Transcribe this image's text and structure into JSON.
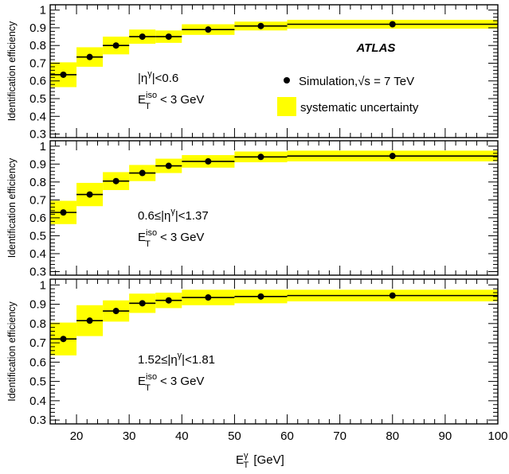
{
  "chart_data": [
    {
      "type": "scatter",
      "ylabel": "Identification efficiency",
      "ylim": [
        0.28,
        1.03
      ],
      "xlim": [
        15,
        100
      ],
      "yticks": [
        0.3,
        0.4,
        0.5,
        0.6,
        0.7,
        0.8,
        0.9,
        1
      ],
      "ytick_labels": [
        "0.3",
        "0.4",
        "0.5",
        "0.6",
        "0.7",
        "0.8",
        "0.9",
        "1"
      ],
      "annotation": {
        "eta_range": "|ηγ|<0.6",
        "et_iso": "E_T^iso < 3 GeV"
      },
      "atlas_label": "ATLAS",
      "legend": {
        "position": "right",
        "marker_label": "Simulation,√s = 7 TeV",
        "band_label": "systematic uncertainty"
      },
      "series": [
        {
          "points": [
            {
              "x_low": 15,
              "x_high": 20,
              "y": 0.635,
              "syst": 0.07
            },
            {
              "x_low": 20,
              "x_high": 25,
              "y": 0.735,
              "syst": 0.055
            },
            {
              "x_low": 25,
              "x_high": 30,
              "y": 0.8,
              "syst": 0.05
            },
            {
              "x_low": 30,
              "x_high": 35,
              "y": 0.85,
              "syst": 0.04
            },
            {
              "x_low": 35,
              "x_high": 40,
              "y": 0.85,
              "syst": 0.035
            },
            {
              "x_low": 40,
              "x_high": 50,
              "y": 0.89,
              "syst": 0.03
            },
            {
              "x_low": 50,
              "x_high": 60,
              "y": 0.91,
              "syst": 0.025
            },
            {
              "x_low": 60,
              "x_high": 100,
              "y": 0.92,
              "syst": 0.025
            }
          ]
        }
      ]
    },
    {
      "type": "scatter",
      "ylabel": "Identification efficiency",
      "ylim": [
        0.28,
        1.03
      ],
      "xlim": [
        15,
        100
      ],
      "yticks": [
        0.3,
        0.4,
        0.5,
        0.6,
        0.7,
        0.8,
        0.9,
        1
      ],
      "ytick_labels": [
        "0.3",
        "0.4",
        "0.5",
        "0.6",
        "0.7",
        "0.8",
        "0.9",
        "1"
      ],
      "annotation": {
        "eta_range": "0.6≤|ηγ|<1.37",
        "et_iso": "E_T^iso < 3 GeV"
      },
      "series": [
        {
          "points": [
            {
              "x_low": 15,
              "x_high": 20,
              "y": 0.63,
              "syst": 0.065
            },
            {
              "x_low": 20,
              "x_high": 25,
              "y": 0.73,
              "syst": 0.065
            },
            {
              "x_low": 25,
              "x_high": 30,
              "y": 0.805,
              "syst": 0.05
            },
            {
              "x_low": 30,
              "x_high": 35,
              "y": 0.85,
              "syst": 0.045
            },
            {
              "x_low": 35,
              "x_high": 40,
              "y": 0.89,
              "syst": 0.04
            },
            {
              "x_low": 40,
              "x_high": 50,
              "y": 0.915,
              "syst": 0.035
            },
            {
              "x_low": 50,
              "x_high": 60,
              "y": 0.94,
              "syst": 0.03
            },
            {
              "x_low": 60,
              "x_high": 100,
              "y": 0.945,
              "syst": 0.03
            }
          ]
        }
      ]
    },
    {
      "type": "scatter",
      "ylabel": "Identification efficiency",
      "xlabel": "E_T^γ [GeV]",
      "ylim": [
        0.28,
        1.03
      ],
      "xlim": [
        15,
        100
      ],
      "yticks": [
        0.3,
        0.4,
        0.5,
        0.6,
        0.7,
        0.8,
        0.9,
        1
      ],
      "ytick_labels": [
        "0.3",
        "0.4",
        "0.5",
        "0.6",
        "0.7",
        "0.8",
        "0.9",
        "1"
      ],
      "xticks": [
        20,
        30,
        40,
        50,
        60,
        70,
        80,
        90,
        100
      ],
      "xtick_labels": [
        "20",
        "30",
        "40",
        "50",
        "60",
        "70",
        "80",
        "90",
        "100"
      ],
      "annotation": {
        "eta_range": "1.52≤|ηγ|<1.81",
        "et_iso": "E_T^iso < 3 GeV"
      },
      "series": [
        {
          "points": [
            {
              "x_low": 15,
              "x_high": 20,
              "y": 0.72,
              "syst": 0.085
            },
            {
              "x_low": 20,
              "x_high": 25,
              "y": 0.815,
              "syst": 0.08
            },
            {
              "x_low": 25,
              "x_high": 30,
              "y": 0.865,
              "syst": 0.055
            },
            {
              "x_low": 30,
              "x_high": 35,
              "y": 0.905,
              "syst": 0.05
            },
            {
              "x_low": 35,
              "x_high": 40,
              "y": 0.92,
              "syst": 0.04
            },
            {
              "x_low": 40,
              "x_high": 50,
              "y": 0.935,
              "syst": 0.04
            },
            {
              "x_low": 50,
              "x_high": 60,
              "y": 0.94,
              "syst": 0.035
            },
            {
              "x_low": 60,
              "x_high": 100,
              "y": 0.945,
              "syst": 0.03
            }
          ]
        }
      ]
    }
  ],
  "colors": {
    "band": "#ffff00",
    "marker": "#000000",
    "frame": "#000000"
  },
  "text": {
    "eta_prefix_1": "|η",
    "eta_suffix_1": "|<0.6",
    "eta_prefix_2": "0.6≤|η",
    "eta_suffix_2": "|<1.37",
    "eta_prefix_3": "1.52≤|η",
    "eta_suffix_3": "|<1.81",
    "gamma": "γ",
    "iso": "iso",
    "T": "T",
    "E": "E",
    "et_cut": "< 3 GeV",
    "xlabel_unit": "[GeV]"
  }
}
